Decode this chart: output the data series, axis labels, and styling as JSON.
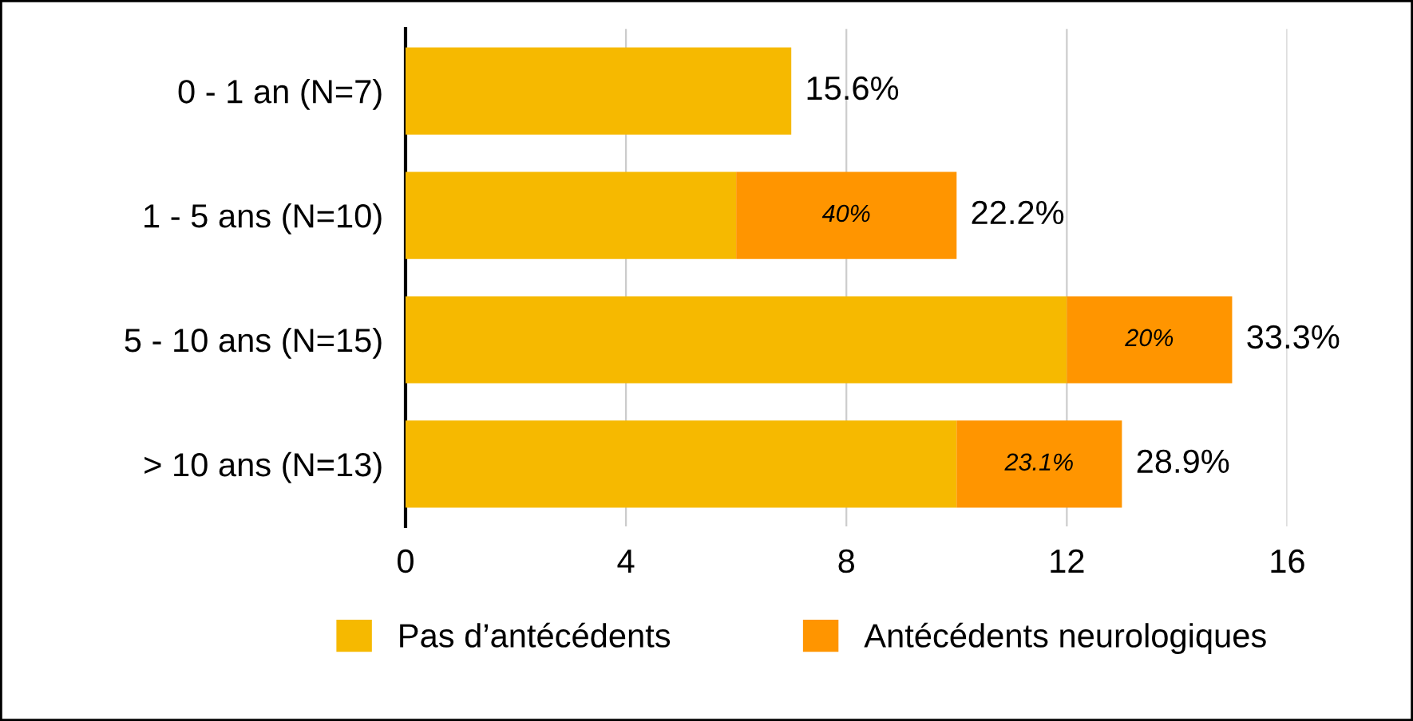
{
  "chart_data": {
    "type": "bar",
    "orientation": "horizontal",
    "stacked": true,
    "categories": [
      "0 - 1 an (N=7)",
      "1 - 5 ans (N=10)",
      "5 - 10 ans (N=15)",
      "> 10 ans (N=13)"
    ],
    "series": [
      {
        "name": "Pas d’antécédents",
        "color": "#f6b900",
        "values": [
          7,
          6,
          12,
          10
        ]
      },
      {
        "name": "Antécédents neurologiques",
        "color": "#ff9500",
        "values": [
          0,
          4,
          3,
          3
        ]
      }
    ],
    "annotations": [
      {
        "text": "15.6%",
        "x": 7,
        "y": "0 - 1 an (N=7)"
      },
      {
        "text": "22.2%",
        "x": 10,
        "y": "1 - 5 ans (N=10)"
      },
      {
        "text": "33.3%",
        "x": 15,
        "y": "5 - 10 ans (N=15)"
      },
      {
        "text": "28.9%",
        "x": 13,
        "y": "> 10 ans (N=13)"
      },
      "40%",
      "20%",
      "23.1%"
    ],
    "xlim": [
      0,
      16
    ],
    "xticks": [
      0,
      4,
      8,
      12,
      16
    ],
    "grid": "x",
    "legend": "bottom"
  }
}
